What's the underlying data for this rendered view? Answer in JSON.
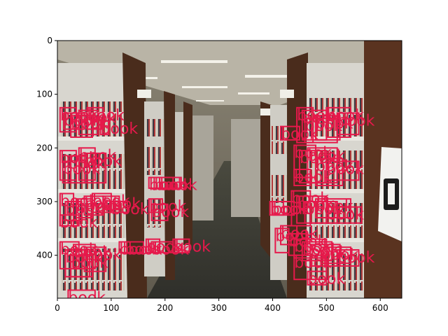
{
  "figure": {
    "background": "#ffffff",
    "photo_subject": "library aisle with tall wooden bookshelves on both sides",
    "detections": {
      "color": "#e6194b",
      "label": "book",
      "boxes": [
        [
          5,
          125,
          35,
          170
        ],
        [
          12,
          135,
          50,
          165
        ],
        [
          25,
          140,
          65,
          180
        ],
        [
          40,
          130,
          75,
          175
        ],
        [
          55,
          125,
          85,
          165
        ],
        [
          80,
          150,
          95,
          175
        ],
        [
          5,
          205,
          35,
          260
        ],
        [
          20,
          215,
          55,
          265
        ],
        [
          40,
          200,
          70,
          260
        ],
        [
          50,
          210,
          90,
          265
        ],
        [
          10,
          225,
          25,
          265
        ],
        [
          5,
          285,
          30,
          345
        ],
        [
          15,
          300,
          45,
          335
        ],
        [
          35,
          295,
          65,
          330
        ],
        [
          50,
          290,
          85,
          325
        ],
        [
          65,
          285,
          100,
          320
        ],
        [
          85,
          290,
          115,
          315
        ],
        [
          100,
          300,
          130,
          320
        ],
        [
          5,
          325,
          40,
          345
        ],
        [
          5,
          375,
          40,
          425
        ],
        [
          15,
          390,
          60,
          440
        ],
        [
          30,
          380,
          70,
          425
        ],
        [
          50,
          385,
          90,
          430
        ],
        [
          25,
          400,
          65,
          440
        ],
        [
          115,
          375,
          135,
          395
        ],
        [
          125,
          375,
          160,
          395
        ],
        [
          20,
          465,
          70,
          485
        ],
        [
          170,
          255,
          190,
          275
        ],
        [
          180,
          255,
          215,
          275
        ],
        [
          190,
          255,
          230,
          275
        ],
        [
          170,
          295,
          195,
          320
        ],
        [
          175,
          305,
          205,
          335
        ],
        [
          165,
          370,
          190,
          395
        ],
        [
          175,
          375,
          215,
          395
        ],
        [
          215,
          370,
          245,
          395
        ],
        [
          415,
          160,
          450,
          185
        ],
        [
          445,
          125,
          475,
          190
        ],
        [
          455,
          130,
          500,
          185
        ],
        [
          460,
          145,
          520,
          190
        ],
        [
          480,
          140,
          525,
          185
        ],
        [
          500,
          125,
          545,
          180
        ],
        [
          520,
          135,
          560,
          175
        ],
        [
          440,
          195,
          480,
          255
        ],
        [
          450,
          205,
          500,
          265
        ],
        [
          465,
          200,
          520,
          265
        ],
        [
          480,
          220,
          530,
          270
        ],
        [
          500,
          225,
          560,
          260
        ],
        [
          440,
          240,
          470,
          270
        ],
        [
          400,
          300,
          440,
          325
        ],
        [
          435,
          280,
          470,
          345
        ],
        [
          445,
          290,
          500,
          340
        ],
        [
          460,
          300,
          520,
          340
        ],
        [
          480,
          295,
          545,
          330
        ],
        [
          500,
          310,
          565,
          340
        ],
        [
          395,
          300,
          420,
          325
        ],
        [
          405,
          350,
          430,
          395
        ],
        [
          415,
          345,
          445,
          380
        ],
        [
          430,
          360,
          465,
          400
        ],
        [
          440,
          370,
          500,
          405
        ],
        [
          455,
          375,
          510,
          410
        ],
        [
          470,
          380,
          525,
          420
        ],
        [
          490,
          385,
          545,
          415
        ],
        [
          520,
          390,
          560,
          420
        ],
        [
          440,
          400,
          500,
          445
        ],
        [
          465,
          430,
          500,
          455
        ]
      ]
    },
    "axes": {
      "x_ticks": [
        "0",
        "100",
        "200",
        "300",
        "400",
        "500",
        "600"
      ],
      "y_ticks": [
        "0",
        "100",
        "200",
        "300",
        "400"
      ],
      "xlim": [
        0,
        640
      ],
      "ylim": [
        480,
        0
      ]
    }
  }
}
